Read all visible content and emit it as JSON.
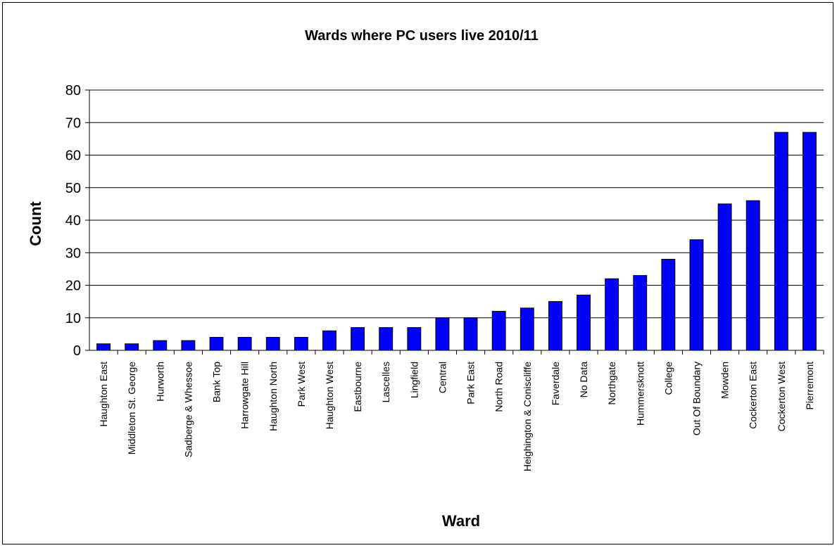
{
  "chart_data": {
    "type": "bar",
    "title": "Wards where PC users live 2010/11",
    "xlabel": "Ward",
    "ylabel": "Count",
    "ylim": [
      0,
      80
    ],
    "yticks": [
      0,
      10,
      20,
      30,
      40,
      50,
      60,
      70,
      80
    ],
    "grid": true,
    "legend": "none",
    "bar_color": "#0000ff",
    "categories": [
      "Haughton East",
      "Middleton St. George",
      "Hurworth",
      "Sadberge & Whessoe",
      "Bank Top",
      "Harrowgate Hill",
      "Haughton North",
      "Park West",
      "Haughton West",
      "Eastbourne",
      "Lascelles",
      "Lingfield",
      "Central",
      "Park East",
      "North Road",
      "Heighington & Coniscliffe",
      "Faverdale",
      "No Data",
      "Northgate",
      "Hummersknott",
      "College",
      "Out Of Boundary",
      "Mowden",
      "Cockerton East",
      "Cockerton West",
      "Pierremont"
    ],
    "values": [
      2,
      2,
      3,
      3,
      4,
      4,
      4,
      4,
      6,
      7,
      7,
      7,
      10,
      10,
      12,
      13,
      15,
      17,
      22,
      23,
      28,
      34,
      45,
      46,
      67,
      67
    ]
  }
}
